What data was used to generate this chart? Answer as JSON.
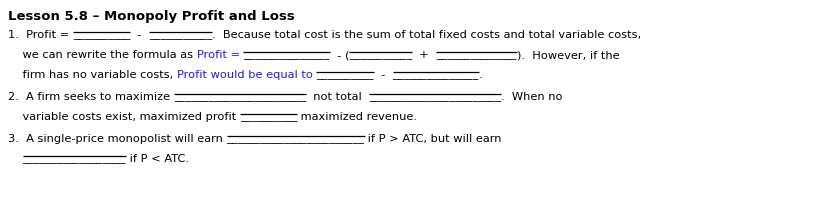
{
  "title": "Lesson 5.8 – Monopoly Profit and Loss",
  "bg_color": "#ffffff",
  "text_color": "#000000",
  "blue_color": "#1a1aff",
  "title_fontsize": 9.5,
  "body_fontsize": 8.2,
  "lines": [
    [
      {
        "text": "1.  Profit = ",
        "color": "#000000",
        "ul": false
      },
      {
        "text": "__________",
        "color": "#000000",
        "ul": true
      },
      {
        "text": "  -  ",
        "color": "#000000",
        "ul": false
      },
      {
        "text": "___________",
        "color": "#000000",
        "ul": true
      },
      {
        "text": ".  Because total cost is the sum of total fixed costs and total variable costs,",
        "color": "#000000",
        "ul": false
      }
    ],
    [
      {
        "text": "    we can rewrite the formula as ",
        "color": "#000000",
        "ul": false
      },
      {
        "text": "Profit = ",
        "color": "#1a1aff",
        "ul": false
      },
      {
        "text": "_______________",
        "color": "#000000",
        "ul": true
      },
      {
        "text": "  - (",
        "color": "#000000",
        "ul": false
      },
      {
        "text": "___________",
        "color": "#000000",
        "ul": true
      },
      {
        "text": "  +  ",
        "color": "#000000",
        "ul": false
      },
      {
        "text": "______________",
        "color": "#000000",
        "ul": true
      },
      {
        "text": ").  However, if the",
        "color": "#000000",
        "ul": false
      }
    ],
    [
      {
        "text": "    firm has no variable costs, ",
        "color": "#000000",
        "ul": false
      },
      {
        "text": "Profit would be equal to ",
        "color": "#1a1aff",
        "ul": false
      },
      {
        "text": "__________",
        "color": "#000000",
        "ul": true
      },
      {
        "text": "  -  ",
        "color": "#000000",
        "ul": false
      },
      {
        "text": "_______________",
        "color": "#000000",
        "ul": true
      },
      {
        "text": ".",
        "color": "#000000",
        "ul": false
      }
    ],
    [
      {
        "text": "2.  A firm seeks to maximize ",
        "color": "#000000",
        "ul": false
      },
      {
        "text": "_______________________",
        "color": "#000000",
        "ul": true
      },
      {
        "text": "  not total  ",
        "color": "#000000",
        "ul": false
      },
      {
        "text": "_______________________",
        "color": "#000000",
        "ul": true
      },
      {
        "text": ".  When no",
        "color": "#000000",
        "ul": false
      }
    ],
    [
      {
        "text": "    variable costs exist, maximized profit ",
        "color": "#000000",
        "ul": false
      },
      {
        "text": "__________",
        "color": "#000000",
        "ul": true
      },
      {
        "text": " maximized revenue.",
        "color": "#000000",
        "ul": false
      }
    ],
    [
      {
        "text": "3.  A single-price monopolist will earn ",
        "color": "#000000",
        "ul": false
      },
      {
        "text": "________________________",
        "color": "#000000",
        "ul": true
      },
      {
        "text": " if P > ATC, but will earn",
        "color": "#000000",
        "ul": false
      }
    ],
    [
      {
        "text": "    ",
        "color": "#000000",
        "ul": false
      },
      {
        "text": "__________________",
        "color": "#000000",
        "ul": true
      },
      {
        "text": " if P < ATC.",
        "color": "#000000",
        "ul": false
      }
    ]
  ]
}
